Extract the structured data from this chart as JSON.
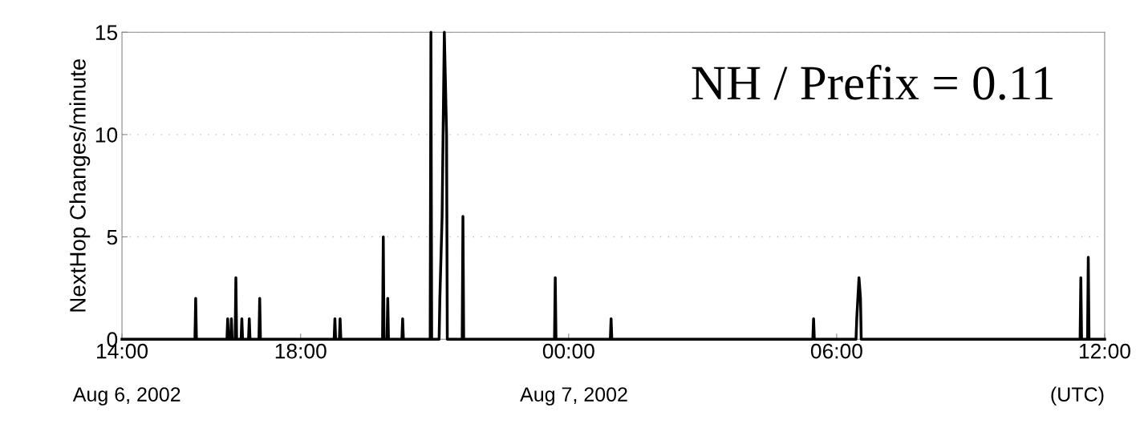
{
  "chart_data": {
    "type": "line",
    "ylabel": "NextHop Changes/minute",
    "annotations": [
      "Aug 6, 2002",
      "Aug 7, 2002",
      "(UTC)",
      "NH / Prefix = 0.11"
    ],
    "x": [
      "2002-08-06T14:00",
      "2002-08-06T15:38",
      "2002-08-06T15:39",
      "2002-08-06T15:40",
      "2002-08-06T16:21",
      "2002-08-06T16:22",
      "2002-08-06T16:23",
      "2002-08-06T16:26",
      "2002-08-06T16:27",
      "2002-08-06T16:28",
      "2002-08-06T16:32",
      "2002-08-06T16:33",
      "2002-08-06T16:34",
      "2002-08-06T16:40",
      "2002-08-06T16:41",
      "2002-08-06T16:42",
      "2002-08-06T16:50",
      "2002-08-06T16:51",
      "2002-08-06T16:52",
      "2002-08-06T17:04",
      "2002-08-06T17:05",
      "2002-08-06T17:06",
      "2002-08-06T18:45",
      "2002-08-06T18:46",
      "2002-08-06T18:47",
      "2002-08-06T18:52",
      "2002-08-06T18:53",
      "2002-08-06T18:54",
      "2002-08-06T19:50",
      "2002-08-06T19:51",
      "2002-08-06T19:52",
      "2002-08-06T19:56",
      "2002-08-06T19:57",
      "2002-08-06T19:58",
      "2002-08-06T20:16",
      "2002-08-06T20:17",
      "2002-08-06T20:18",
      "2002-08-06T20:54",
      "2002-08-06T20:55",
      "2002-08-06T20:56",
      "2002-08-06T21:06",
      "2002-08-06T21:07",
      "2002-08-06T21:10",
      "2002-08-06T21:13",
      "2002-08-06T21:16",
      "2002-08-06T21:17",
      "2002-08-06T21:37",
      "2002-08-06T21:38",
      "2002-08-06T21:39",
      "2002-08-06T23:41",
      "2002-08-06T23:42",
      "2002-08-06T23:43",
      "2002-08-07T00:56",
      "2002-08-07T00:57",
      "2002-08-07T00:58",
      "2002-08-07T05:28",
      "2002-08-07T05:29",
      "2002-08-07T05:30",
      "2002-08-07T06:26",
      "2002-08-07T06:27",
      "2002-08-07T06:30",
      "2002-08-07T06:32",
      "2002-08-07T06:33",
      "2002-08-07T11:27",
      "2002-08-07T11:28",
      "2002-08-07T11:29",
      "2002-08-07T11:37",
      "2002-08-07T11:38",
      "2002-08-07T11:39",
      "2002-08-07T12:00"
    ],
    "values": [
      0,
      0,
      2,
      0,
      0,
      1,
      0,
      0,
      1,
      0,
      0,
      3,
      0,
      0,
      1,
      0,
      0,
      1,
      0,
      0,
      2,
      0,
      0,
      1,
      0,
      0,
      1,
      0,
      0,
      5,
      0,
      0,
      2,
      0,
      0,
      1,
      0,
      0,
      15,
      0,
      0,
      2,
      6,
      15,
      10,
      0,
      0,
      6,
      0,
      0,
      3,
      0,
      0,
      1,
      0,
      0,
      1,
      0,
      0,
      1,
      3,
      2,
      0,
      0,
      3,
      0,
      0,
      4,
      0,
      0
    ],
    "color": "#000000",
    "xlim": [
      "2002-08-06T14:00",
      "2002-08-07T12:00"
    ],
    "xticks": [
      {
        "value": "2002-08-06T14:00",
        "label": "14:00"
      },
      {
        "value": "2002-08-06T18:00",
        "label": "18:00"
      },
      {
        "value": "2002-08-07T00:00",
        "label": "00:00"
      },
      {
        "value": "2002-08-07T06:00",
        "label": "06:00"
      },
      {
        "value": "2002-08-07T12:00",
        "label": "12:00"
      }
    ],
    "ylim": [
      0,
      15
    ],
    "yticks": [
      0,
      5,
      10,
      15
    ],
    "grid": "y",
    "line_style": "solid"
  }
}
